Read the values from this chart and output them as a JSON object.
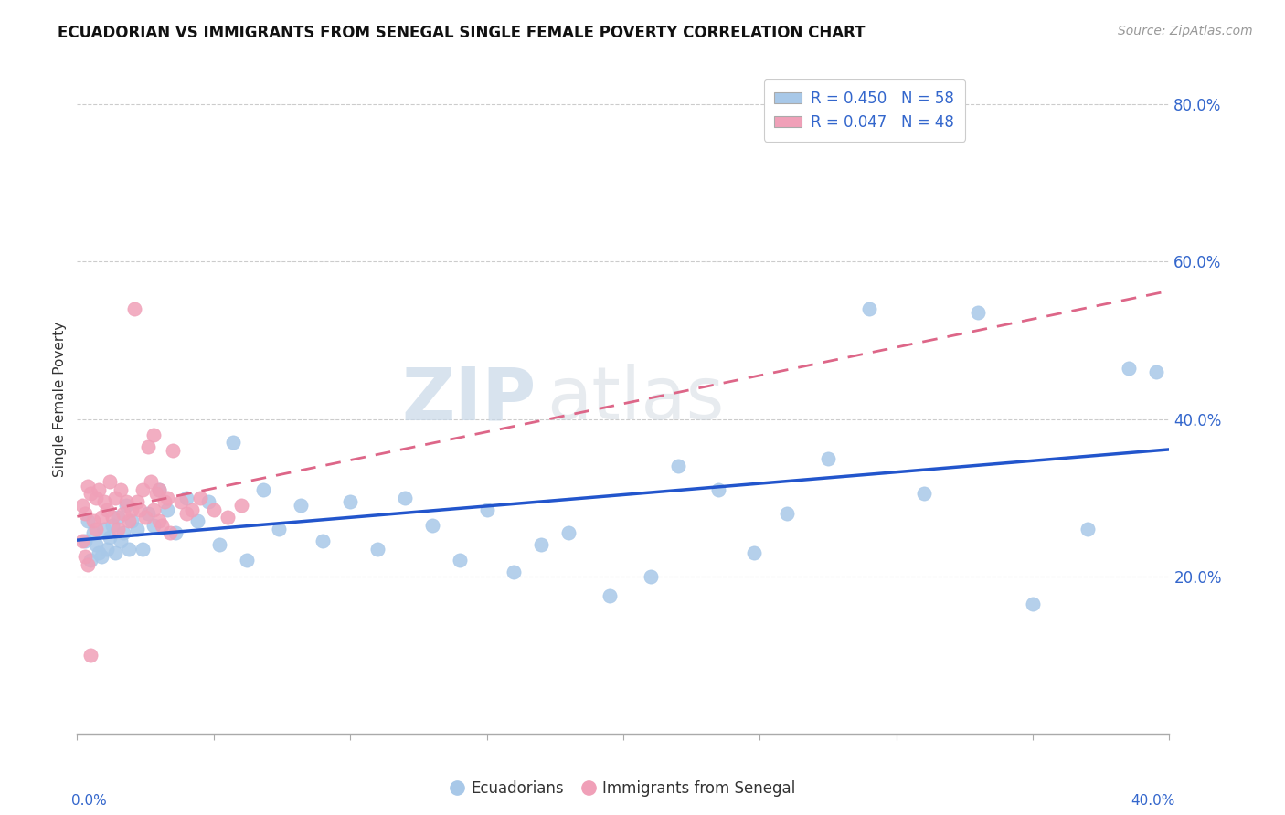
{
  "title": "ECUADORIAN VS IMMIGRANTS FROM SENEGAL SINGLE FEMALE POVERTY CORRELATION CHART",
  "source": "Source: ZipAtlas.com",
  "ylabel": "Single Female Poverty",
  "xlim": [
    0.0,
    0.4
  ],
  "ylim": [
    0.0,
    0.85
  ],
  "blue_color": "#a8c8e8",
  "pink_color": "#f0a0b8",
  "blue_line_color": "#2255cc",
  "pink_line_color": "#dd6688",
  "legend_line1": "R = 0.450   N = 58",
  "legend_line2": "R = 0.047   N = 48",
  "watermark_zip": "ZIP",
  "watermark_atlas": "atlas",
  "ecuadorians_x": [
    0.003,
    0.004,
    0.005,
    0.006,
    0.007,
    0.008,
    0.009,
    0.01,
    0.011,
    0.012,
    0.013,
    0.014,
    0.015,
    0.016,
    0.017,
    0.018,
    0.019,
    0.02,
    0.022,
    0.024,
    0.026,
    0.028,
    0.03,
    0.033,
    0.036,
    0.04,
    0.044,
    0.048,
    0.052,
    0.057,
    0.062,
    0.068,
    0.074,
    0.082,
    0.09,
    0.1,
    0.11,
    0.12,
    0.13,
    0.14,
    0.15,
    0.16,
    0.17,
    0.18,
    0.195,
    0.21,
    0.22,
    0.235,
    0.248,
    0.26,
    0.275,
    0.29,
    0.31,
    0.33,
    0.35,
    0.37,
    0.385,
    0.395
  ],
  "ecuadorians_y": [
    0.245,
    0.27,
    0.22,
    0.255,
    0.24,
    0.23,
    0.225,
    0.26,
    0.235,
    0.25,
    0.265,
    0.23,
    0.275,
    0.245,
    0.255,
    0.29,
    0.235,
    0.27,
    0.26,
    0.235,
    0.28,
    0.265,
    0.31,
    0.285,
    0.255,
    0.3,
    0.27,
    0.295,
    0.24,
    0.37,
    0.22,
    0.31,
    0.26,
    0.29,
    0.245,
    0.295,
    0.235,
    0.3,
    0.265,
    0.22,
    0.285,
    0.205,
    0.24,
    0.255,
    0.175,
    0.2,
    0.34,
    0.31,
    0.23,
    0.28,
    0.35,
    0.54,
    0.305,
    0.535,
    0.165,
    0.26,
    0.465,
    0.46
  ],
  "senegal_x": [
    0.002,
    0.003,
    0.004,
    0.005,
    0.006,
    0.007,
    0.007,
    0.008,
    0.009,
    0.01,
    0.011,
    0.012,
    0.013,
    0.014,
    0.015,
    0.016,
    0.017,
    0.018,
    0.019,
    0.02,
    0.021,
    0.022,
    0.023,
    0.024,
    0.025,
    0.026,
    0.027,
    0.028,
    0.029,
    0.03,
    0.031,
    0.032,
    0.033,
    0.034,
    0.035,
    0.038,
    0.04,
    0.042,
    0.045,
    0.05,
    0.028,
    0.03,
    0.055,
    0.06,
    0.002,
    0.003,
    0.004,
    0.005
  ],
  "senegal_y": [
    0.29,
    0.28,
    0.315,
    0.305,
    0.27,
    0.3,
    0.26,
    0.31,
    0.275,
    0.295,
    0.285,
    0.32,
    0.275,
    0.3,
    0.26,
    0.31,
    0.28,
    0.295,
    0.27,
    0.285,
    0.54,
    0.295,
    0.285,
    0.31,
    0.275,
    0.365,
    0.32,
    0.285,
    0.305,
    0.27,
    0.265,
    0.295,
    0.3,
    0.255,
    0.36,
    0.295,
    0.28,
    0.285,
    0.3,
    0.285,
    0.38,
    0.31,
    0.275,
    0.29,
    0.245,
    0.225,
    0.215,
    0.1
  ]
}
